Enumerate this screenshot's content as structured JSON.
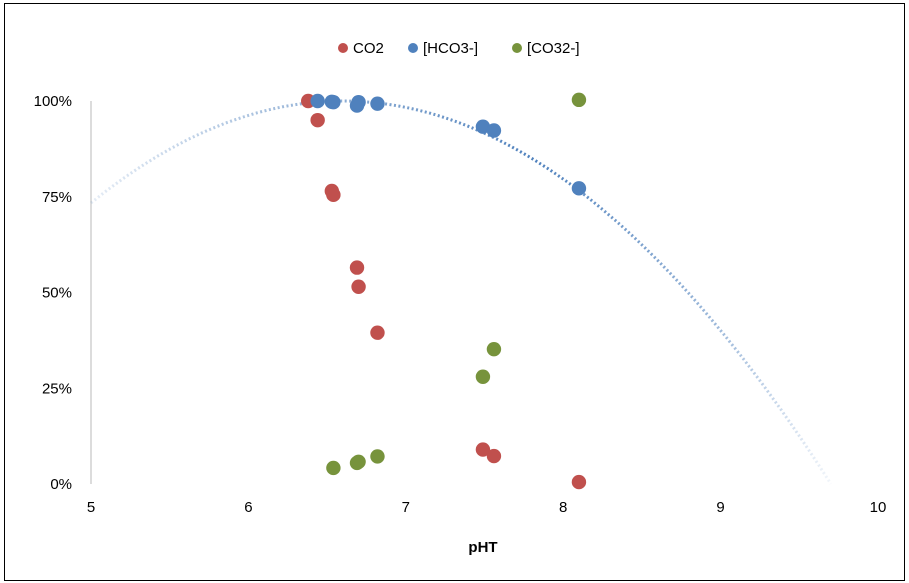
{
  "chart_data": {
    "type": "scatter",
    "title": "",
    "xlabel": "pHT",
    "ylabel": "",
    "xlim": [
      5,
      10
    ],
    "ylim": [
      0,
      1
    ],
    "x_ticks": [
      5,
      6,
      7,
      8,
      9,
      10
    ],
    "x_tick_labels": [
      "5",
      "6",
      "7",
      "8",
      "9",
      "10"
    ],
    "y_ticks": [
      0,
      0.25,
      0.5,
      0.75,
      1
    ],
    "y_tick_labels": [
      "0%",
      "25%",
      "50%",
      "75%",
      "100%"
    ],
    "grid": false,
    "legend": {
      "position": "top-center"
    },
    "series": [
      {
        "name": "CO2",
        "color": "#c0504d",
        "points": [
          {
            "x": 6.38,
            "y": 1.0
          },
          {
            "x": 6.44,
            "y": 0.95
          },
          {
            "x": 6.53,
            "y": 0.765
          },
          {
            "x": 6.54,
            "y": 0.755
          },
          {
            "x": 6.69,
            "y": 0.565
          },
          {
            "x": 6.7,
            "y": 0.515
          },
          {
            "x": 6.82,
            "y": 0.395
          },
          {
            "x": 7.49,
            "y": 0.09
          },
          {
            "x": 7.56,
            "y": 0.073
          },
          {
            "x": 8.1,
            "y": 0.005
          }
        ]
      },
      {
        "name": "[HCO3-]",
        "color": "#4f81bd",
        "points": [
          {
            "x": 6.44,
            "y": 1.0
          },
          {
            "x": 6.53,
            "y": 0.998
          },
          {
            "x": 6.54,
            "y": 0.997
          },
          {
            "x": 6.69,
            "y": 0.988
          },
          {
            "x": 6.7,
            "y": 0.997
          },
          {
            "x": 6.82,
            "y": 0.993
          },
          {
            "x": 7.49,
            "y": 0.933
          },
          {
            "x": 7.56,
            "y": 0.923
          },
          {
            "x": 8.1,
            "y": 0.772
          }
        ]
      },
      {
        "name": "[CO32-]",
        "color": "#77933c",
        "points": [
          {
            "x": 6.54,
            "y": 0.042
          },
          {
            "x": 6.69,
            "y": 0.055
          },
          {
            "x": 6.7,
            "y": 0.058
          },
          {
            "x": 6.82,
            "y": 0.072
          },
          {
            "x": 7.49,
            "y": 0.28
          },
          {
            "x": 7.56,
            "y": 0.352
          },
          {
            "x": 8.1,
            "y": 1.003
          }
        ]
      }
    ],
    "trendline": {
      "series": "[HCO3-]",
      "type": "polynomial",
      "order": 2,
      "style": "dotted",
      "color": "#4f81bd",
      "x_range": [
        5,
        9.7
      ],
      "coefficients": {
        "peak_x": 6.6,
        "peak_y": 1.0,
        "curvature": 0.104
      }
    }
  }
}
